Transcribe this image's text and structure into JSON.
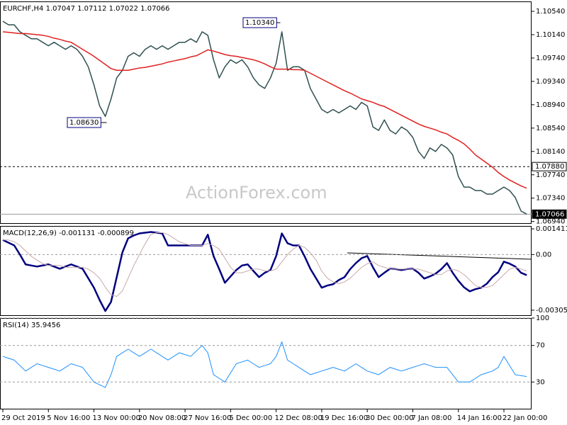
{
  "chart_data": [
    {
      "type": "line",
      "title": "EURCHF,H4  1.07047 1.07112 1.07022 1.07066",
      "categories": [
        "29 Oct 2019",
        null,
        null,
        null,
        null,
        null,
        null,
        null,
        "5 Nov 16:00",
        null,
        null,
        null,
        null,
        null,
        null,
        null,
        "13 Nov 00:00",
        null,
        null,
        null,
        null,
        null,
        null,
        null,
        "20 Nov 08:00",
        null,
        null,
        null,
        null,
        null,
        null,
        null,
        "27 Nov 16:00",
        null,
        null,
        null,
        null,
        null,
        null,
        null,
        "5 Dec 00:00",
        null,
        null,
        null,
        null,
        null,
        null,
        null,
        "12 Dec 08:00",
        null,
        null,
        null,
        null,
        null,
        null,
        null,
        "19 Dec 16:00",
        null,
        null,
        null,
        null,
        null,
        null,
        null,
        "30 Dec 00:00",
        null,
        null,
        null,
        null,
        null,
        null,
        null,
        "7 Jan 08:00",
        null,
        null,
        null,
        null,
        null,
        null,
        null,
        "14 Jan 16:00",
        null,
        null,
        null,
        null,
        null,
        null,
        null,
        "22 Jan 00:00",
        null,
        null,
        null,
        null
      ],
      "series": [
        {
          "color": "#2f4f4f",
          "values": [
            1.1037,
            1.1031,
            1.1031,
            1.1019,
            1.1013,
            1.1007,
            1.1007,
            1.1001,
            1.0995,
            1.1001,
            1.0995,
            1.0989,
            1.0995,
            1.0989,
            1.0977,
            1.0959,
            1.0928,
            1.0892,
            1.0874,
            1.0904,
            1.094,
            1.0953,
            1.0977,
            1.0983,
            1.0977,
            1.0989,
            1.0995,
            1.0989,
            1.0995,
            1.0989,
            1.0995,
            1.1001,
            1.1001,
            1.1007,
            1.1001,
            1.1019,
            1.1013,
            1.0971,
            1.094,
            1.0959,
            1.0971,
            1.0965,
            1.0971,
            1.0959,
            1.094,
            1.0928,
            1.0922,
            1.094,
            1.0965,
            1.1019,
            1.0953,
            1.0959,
            1.0959,
            1.0953,
            1.0922,
            1.0904,
            1.0886,
            1.088,
            1.0886,
            1.088,
            1.0886,
            1.0892,
            1.0886,
            1.0898,
            1.0892,
            1.0856,
            1.085,
            1.0868,
            1.085,
            1.0844,
            1.0856,
            1.085,
            1.0838,
            1.0814,
            1.0802,
            1.082,
            1.0814,
            1.0826,
            1.082,
            1.0808,
            1.0771,
            1.0753,
            1.0753,
            1.0747,
            1.0747,
            1.0741,
            1.0741,
            1.0747,
            1.0753,
            1.0747,
            1.0735,
            1.0712,
            1.07066
          ]
        },
        {
          "color": "#e02020",
          "values": [
            1.1019,
            1.1018,
            1.1017,
            1.1016,
            1.1016,
            1.1015,
            1.1014,
            1.1013,
            1.1011,
            1.1008,
            1.1006,
            1.1003,
            1.1001,
            1.0995,
            1.0989,
            1.0983,
            1.0977,
            1.097,
            1.0963,
            1.0956,
            1.0953,
            1.0953,
            1.0953,
            1.0955,
            1.0957,
            1.0958,
            1.096,
            1.0962,
            1.0964,
            1.0967,
            1.0969,
            1.0971,
            1.0973,
            1.0976,
            1.0978,
            1.0983,
            1.0988,
            1.0986,
            1.0983,
            1.098,
            1.0978,
            1.0977,
            1.0975,
            1.0973,
            1.0971,
            1.0968,
            1.0964,
            1.0959,
            1.0955,
            1.0955,
            1.0955,
            1.0954,
            1.0954,
            1.0953,
            1.0948,
            1.0943,
            1.0938,
            1.0933,
            1.0928,
            1.0923,
            1.0918,
            1.0914,
            1.0909,
            1.0904,
            1.0901,
            1.0898,
            1.0894,
            1.0891,
            1.0886,
            1.0881,
            1.0876,
            1.0871,
            1.0866,
            1.0861,
            1.0857,
            1.0854,
            1.0851,
            1.0847,
            1.0844,
            1.0838,
            1.0833,
            1.0827,
            1.0818,
            1.0808,
            1.0801,
            1.0794,
            1.0787,
            1.0778,
            1.0771,
            1.0765,
            1.076,
            1.0755,
            1.0751
          ]
        }
      ],
      "ylim": [
        1.069,
        1.1071
      ],
      "yticks": [
        {
          "value": 1.1054,
          "label": "1.10540"
        },
        {
          "value": 1.1014,
          "label": "1.10140"
        },
        {
          "value": 1.0974,
          "label": "1.09740"
        },
        {
          "value": 1.0934,
          "label": "1.09340"
        },
        {
          "value": 1.0894,
          "label": "1.08940"
        },
        {
          "value": 1.0854,
          "label": "1.08540"
        },
        {
          "value": 1.0814,
          "label": "1.08140"
        },
        {
          "value": 1.0774,
          "label": "1.07740"
        },
        {
          "value": 1.0734,
          "label": "1.07340"
        },
        {
          "value": 1.0694,
          "label": "1.06940"
        }
      ],
      "levels": [
        {
          "value": 1.0788,
          "label": "1.07880",
          "line": "dashed",
          "label_bg": "#ffffff",
          "label_color": "#000000"
        },
        {
          "value": 1.07066,
          "label": "1.07066",
          "line": "solid",
          "label_bg": "#000000",
          "label_color": "#ffffff"
        }
      ],
      "annotations": [
        {
          "value": 1.1034,
          "label": "1.10340"
        },
        {
          "value": 1.0863,
          "label": "1.08630"
        }
      ],
      "watermark": "ActionForex.com"
    },
    {
      "type": "line",
      "title": "MACD(12,26,9) -0.001131 -0.000899",
      "series": [
        {
          "color": "#000080",
          "width": 2.5,
          "values": [
            0.0008,
            0.00065,
            0.0005,
            0.0,
            -0.00054,
            -0.0006,
            -0.00066,
            -0.0006,
            -0.00054,
            -0.00066,
            -0.00078,
            -0.00066,
            -0.00054,
            -0.00066,
            -0.00078,
            -0.0013,
            -0.00182,
            -0.0025,
            -0.0031,
            -0.0026,
            -0.00124,
            0.00012,
            0.00089,
            0.00105,
            0.00116,
            0.0012,
            0.00124,
            0.0012,
            0.00116,
            0.0005,
            0.0005,
            0.0005,
            0.0005,
            0.0005,
            0.0005,
            0.0005,
            0.00109,
            -8e-05,
            -0.0008,
            -0.00155,
            -0.0012,
            -0.00085,
            -0.0006,
            -0.00054,
            -0.0009,
            -0.00124,
            -0.001,
            -0.00085,
            -8e-05,
            0.00116,
            0.00062,
            0.0005,
            0.0005,
            -0.0001,
            -0.00078,
            -0.0013,
            -0.00182,
            -0.0017,
            -0.00163,
            -0.0014,
            -0.00124,
            -0.0008,
            -0.00047,
            -0.0002,
            -8e-05,
            -0.0007,
            -0.00124,
            -0.001,
            -0.00078,
            -0.0008,
            -0.00085,
            -0.0008,
            -0.00078,
            -0.001,
            -0.00132,
            -0.0012,
            -0.00105,
            -0.0008,
            -0.00047,
            -0.001,
            -0.00144,
            -0.0018,
            -0.00202,
            -0.0019,
            -0.00182,
            -0.0016,
            -0.00124,
            -0.00097,
            -0.00039,
            -0.0005,
            -0.00066,
            -0.001,
            -0.001131
          ]
        },
        {
          "color": "#c8a8a8",
          "width": 1,
          "values": [
            0.0008,
            0.0008,
            0.0007,
            0.0005,
            0.0002,
            -0.0001,
            -0.0003,
            -0.0005,
            -0.0006,
            -0.0006,
            -0.0006,
            -0.0007,
            -0.0007,
            -0.0007,
            -0.0007,
            -0.0008,
            -0.001,
            -0.0013,
            -0.0018,
            -0.0022,
            -0.0023,
            -0.002,
            -0.0013,
            -0.0006,
            0.0,
            0.0006,
            0.0011,
            0.0012,
            0.0012,
            0.0011,
            0.0009,
            0.0007,
            0.0006,
            0.0005,
            0.0005,
            0.0005,
            0.0006,
            0.0005,
            0.0003,
            -0.0002,
            -0.0007,
            -0.001,
            -0.001,
            -0.0009,
            -0.0008,
            -0.0008,
            -0.0009,
            -0.0009,
            -0.0008,
            -0.0004,
            0.0,
            0.0003,
            0.0005,
            0.0004,
            0.0001,
            -0.0003,
            -0.0009,
            -0.0013,
            -0.0015,
            -0.0016,
            -0.0015,
            -0.0013,
            -0.001,
            -0.0007,
            -0.0005,
            -0.0004,
            -0.0006,
            -0.0007,
            -0.0008,
            -0.0008,
            -0.0008,
            -0.0008,
            -0.0008,
            -0.0008,
            -0.0009,
            -0.001,
            -0.0011,
            -0.0011,
            -0.0009,
            -0.0008,
            -0.0009,
            -0.0011,
            -0.0014,
            -0.0017,
            -0.0018,
            -0.0018,
            -0.0017,
            -0.0014,
            -0.0011,
            -0.0008,
            -0.0007,
            -0.0008,
            -0.000899
          ]
        }
      ],
      "ylim": [
        -0.00337,
        0.00157
      ],
      "yticks": [
        0.001411,
        {
          "value": 0,
          "label": "0.00"
        },
        -0.003055
      ],
      "zero_line": true
    },
    {
      "type": "line",
      "title": "RSI(14) 35.9456",
      "series": [
        {
          "color": "#1e90ff",
          "width": 1,
          "values": [
            58,
            56,
            54,
            48,
            42,
            46,
            50,
            48,
            46,
            44,
            42,
            46,
            50,
            48,
            46,
            38,
            30,
            27,
            24,
            38,
            58,
            62,
            66,
            62,
            58,
            62,
            66,
            62,
            58,
            54,
            58,
            62,
            60,
            58,
            64,
            70,
            62,
            38,
            34,
            30,
            40,
            50,
            52,
            54,
            50,
            46,
            48,
            50,
            58,
            74,
            54,
            50,
            46,
            42,
            38,
            40,
            42,
            44,
            46,
            44,
            42,
            46,
            50,
            46,
            42,
            40,
            38,
            42,
            46,
            44,
            42,
            44,
            46,
            48,
            50,
            48,
            46,
            46,
            46,
            38,
            30,
            30,
            30,
            34,
            38,
            40,
            42,
            46,
            58,
            48,
            38,
            37,
            35.9456
          ]
        }
      ],
      "ylim": [
        0,
        100
      ],
      "yticks": [
        100,
        70,
        30
      ],
      "grid": true
    }
  ]
}
